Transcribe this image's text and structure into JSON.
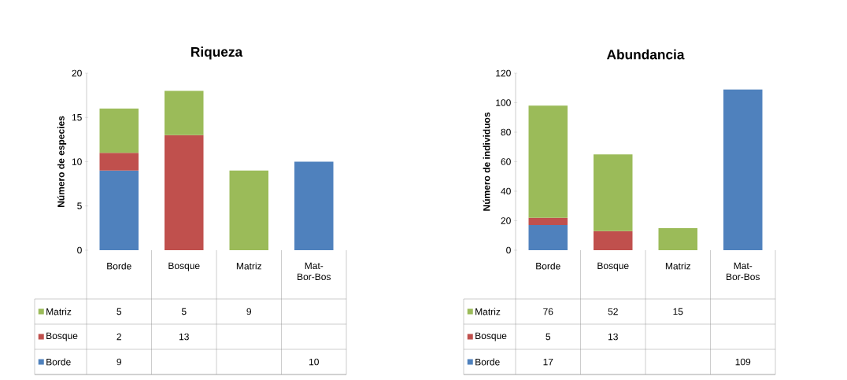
{
  "chart_data": [
    {
      "type": "bar",
      "title": "Riqueza",
      "ylabel": "Número de especies",
      "stacked": true,
      "data_labels": true,
      "legend": "bottom",
      "categories": [
        "Borde",
        "Bosque",
        "Matriz",
        "Mat-Bor-Bos"
      ],
      "ylim": [
        0,
        20
      ],
      "yticks": [
        0,
        5,
        10,
        15,
        20
      ],
      "series": [
        {
          "name": "Borde",
          "color": "#4f81bd",
          "values": [
            9,
            null,
            null,
            10
          ]
        },
        {
          "name": "Bosque",
          "color": "#c0504d",
          "values": [
            2,
            13,
            null,
            null
          ]
        },
        {
          "name": "Matriz",
          "color": "#9bbb59",
          "values": [
            5,
            5,
            9,
            null
          ]
        }
      ]
    },
    {
      "type": "bar",
      "title": "Abundancia",
      "ylabel": "Número de individuos",
      "stacked": true,
      "data_labels": true,
      "legend": "bottom",
      "categories": [
        "Borde",
        "Bosque",
        "Matriz",
        "Mat-Bor-Bos"
      ],
      "ylim": [
        0,
        120
      ],
      "yticks": [
        0,
        20,
        40,
        60,
        80,
        100,
        120
      ],
      "series": [
        {
          "name": "Borde",
          "color": "#4f81bd",
          "values": [
            17,
            null,
            null,
            109
          ]
        },
        {
          "name": "Bosque",
          "color": "#c0504d",
          "values": [
            5,
            13,
            null,
            null
          ]
        },
        {
          "name": "Matriz",
          "color": "#9bbb59",
          "values": [
            76,
            52,
            15,
            null
          ]
        }
      ]
    }
  ]
}
